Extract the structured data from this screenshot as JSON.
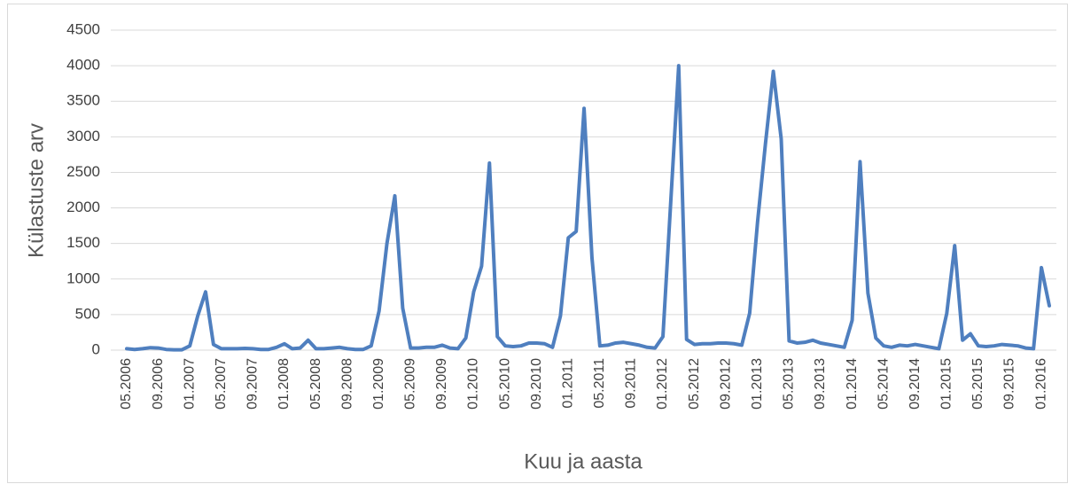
{
  "chart_data": {
    "type": "line",
    "x_label": "Kuu ja aasta",
    "y_label": "Külastuste arv",
    "categories": [
      "05.2006",
      null,
      null,
      null,
      "09.2006",
      null,
      null,
      null,
      "01.2007",
      null,
      null,
      null,
      "05.2007",
      null,
      null,
      null,
      "09.2007",
      null,
      null,
      null,
      "01.2008",
      null,
      null,
      null,
      "05.2008",
      null,
      null,
      null,
      "09.2008",
      null,
      null,
      null,
      "01.2009",
      null,
      null,
      null,
      "05.2009",
      null,
      null,
      null,
      "09.2009",
      null,
      null,
      null,
      "01.2010",
      null,
      null,
      null,
      "05.2010",
      null,
      null,
      null,
      "09.2010",
      null,
      null,
      null,
      "01.2011",
      null,
      null,
      null,
      "05.2011",
      null,
      null,
      null,
      "09.2011",
      null,
      null,
      null,
      "01.2012",
      null,
      null,
      null,
      "05.2012",
      null,
      null,
      null,
      "09.2012",
      null,
      null,
      null,
      "01.2013",
      null,
      null,
      null,
      "05.2013",
      null,
      null,
      null,
      "09.2013",
      null,
      null,
      null,
      "01.2014",
      null,
      null,
      null,
      "05.2014",
      null,
      null,
      null,
      "09.2014",
      null,
      null,
      null,
      "01.2015",
      null,
      null,
      null,
      "05.2015",
      null,
      null,
      null,
      "09.2015",
      null,
      null,
      null,
      "01.2016",
      null
    ],
    "series": [
      {
        "name": "Külastuste arv",
        "color": "#4f7fbf",
        "values": [
          20,
          10,
          20,
          35,
          30,
          10,
          5,
          5,
          60,
          480,
          820,
          80,
          20,
          20,
          20,
          25,
          20,
          10,
          10,
          40,
          90,
          20,
          30,
          140,
          20,
          20,
          30,
          40,
          20,
          10,
          10,
          60,
          550,
          1500,
          2170,
          590,
          30,
          30,
          40,
          40,
          70,
          30,
          20,
          170,
          820,
          1180,
          2630,
          190,
          60,
          50,
          60,
          100,
          100,
          90,
          40,
          480,
          1580,
          1670,
          3400,
          1300,
          60,
          70,
          100,
          110,
          90,
          70,
          40,
          30,
          190,
          2100,
          4000,
          150,
          80,
          90,
          90,
          100,
          100,
          90,
          70,
          520,
          1800,
          2900,
          3920,
          2970,
          130,
          100,
          110,
          140,
          100,
          80,
          60,
          40,
          420,
          2650,
          800,
          170,
          60,
          40,
          70,
          60,
          80,
          60,
          40,
          20,
          520,
          1470,
          140,
          230,
          60,
          50,
          60,
          80,
          70,
          60,
          30,
          20,
          1160,
          625
        ]
      }
    ],
    "ylim": [
      0,
      4500
    ],
    "yticks": [
      0,
      500,
      1000,
      1500,
      2000,
      2500,
      3000,
      3500,
      4000,
      4500
    ],
    "grid": true
  }
}
